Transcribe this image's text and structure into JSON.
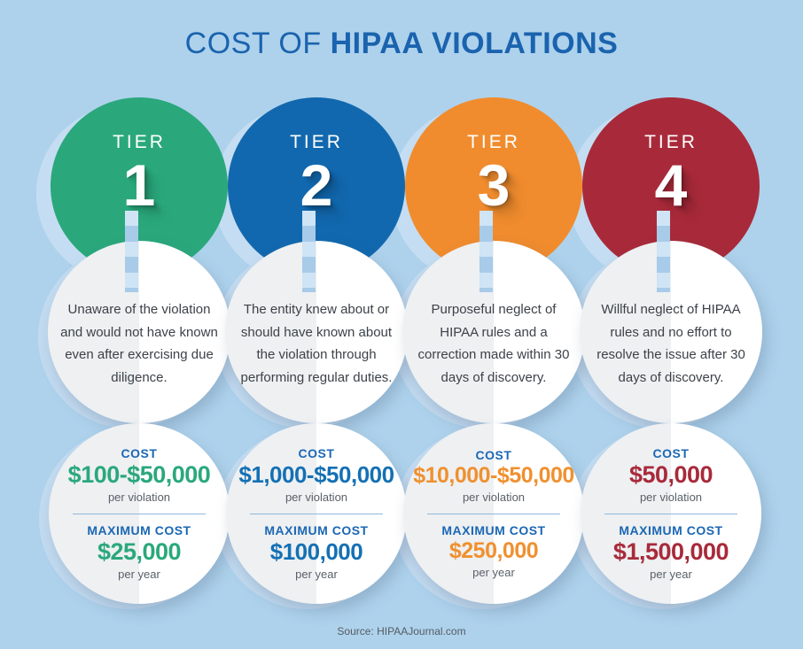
{
  "page": {
    "background": "#aed2ec"
  },
  "title": {
    "prefix": "COST OF ",
    "emphasis": "HIPAA VIOLATIONS",
    "color": "#1a63ae"
  },
  "tiers": [
    {
      "label": "TIER",
      "number": "1",
      "circle_color": "#2aa87c",
      "amount_color": "#2aa87c",
      "description": "Unaware of the violation and would not have known even after exercising due diligence.",
      "cost_label": "COST",
      "cost_value": "$100-$50,000",
      "cost_unit": "per violation",
      "max_label": "MAXIMUM COST",
      "max_value": "$25,000",
      "max_unit": "per year"
    },
    {
      "label": "TIER",
      "number": "2",
      "circle_color": "#1268ae",
      "amount_color": "#1470b4",
      "description": "The entity knew about or should have known about the violation through performing regular duties.",
      "cost_label": "COST",
      "cost_value": "$1,000-$50,000",
      "cost_unit": "per violation",
      "max_label": "MAXIMUM COST",
      "max_value": "$100,000",
      "max_unit": "per year"
    },
    {
      "label": "TIER",
      "number": "3",
      "circle_color": "#f08c2e",
      "amount_color": "#f0902f",
      "description": "Purposeful neglect of HIPAA rules and a correction made within 30 days of discovery.",
      "cost_label": "COST",
      "cost_value": "$10,000-$50,000",
      "cost_unit": "per violation",
      "max_label": "MAXIMUM COST",
      "max_value": "$250,000",
      "max_unit": "per year"
    },
    {
      "label": "TIER",
      "number": "4",
      "circle_color": "#a82a3a",
      "amount_color": "#a82a3a",
      "description": "Willful neglect of HIPAA rules and no effort to resolve the issue after 30 days of discovery.",
      "cost_label": "COST",
      "cost_value": "$50,000",
      "cost_unit": "per violation",
      "max_label": "MAXIMUM COST",
      "max_value": "$1,500,000",
      "max_unit": "per year"
    }
  ],
  "footer": {
    "source": "Source: HIPAAJournal.com"
  }
}
